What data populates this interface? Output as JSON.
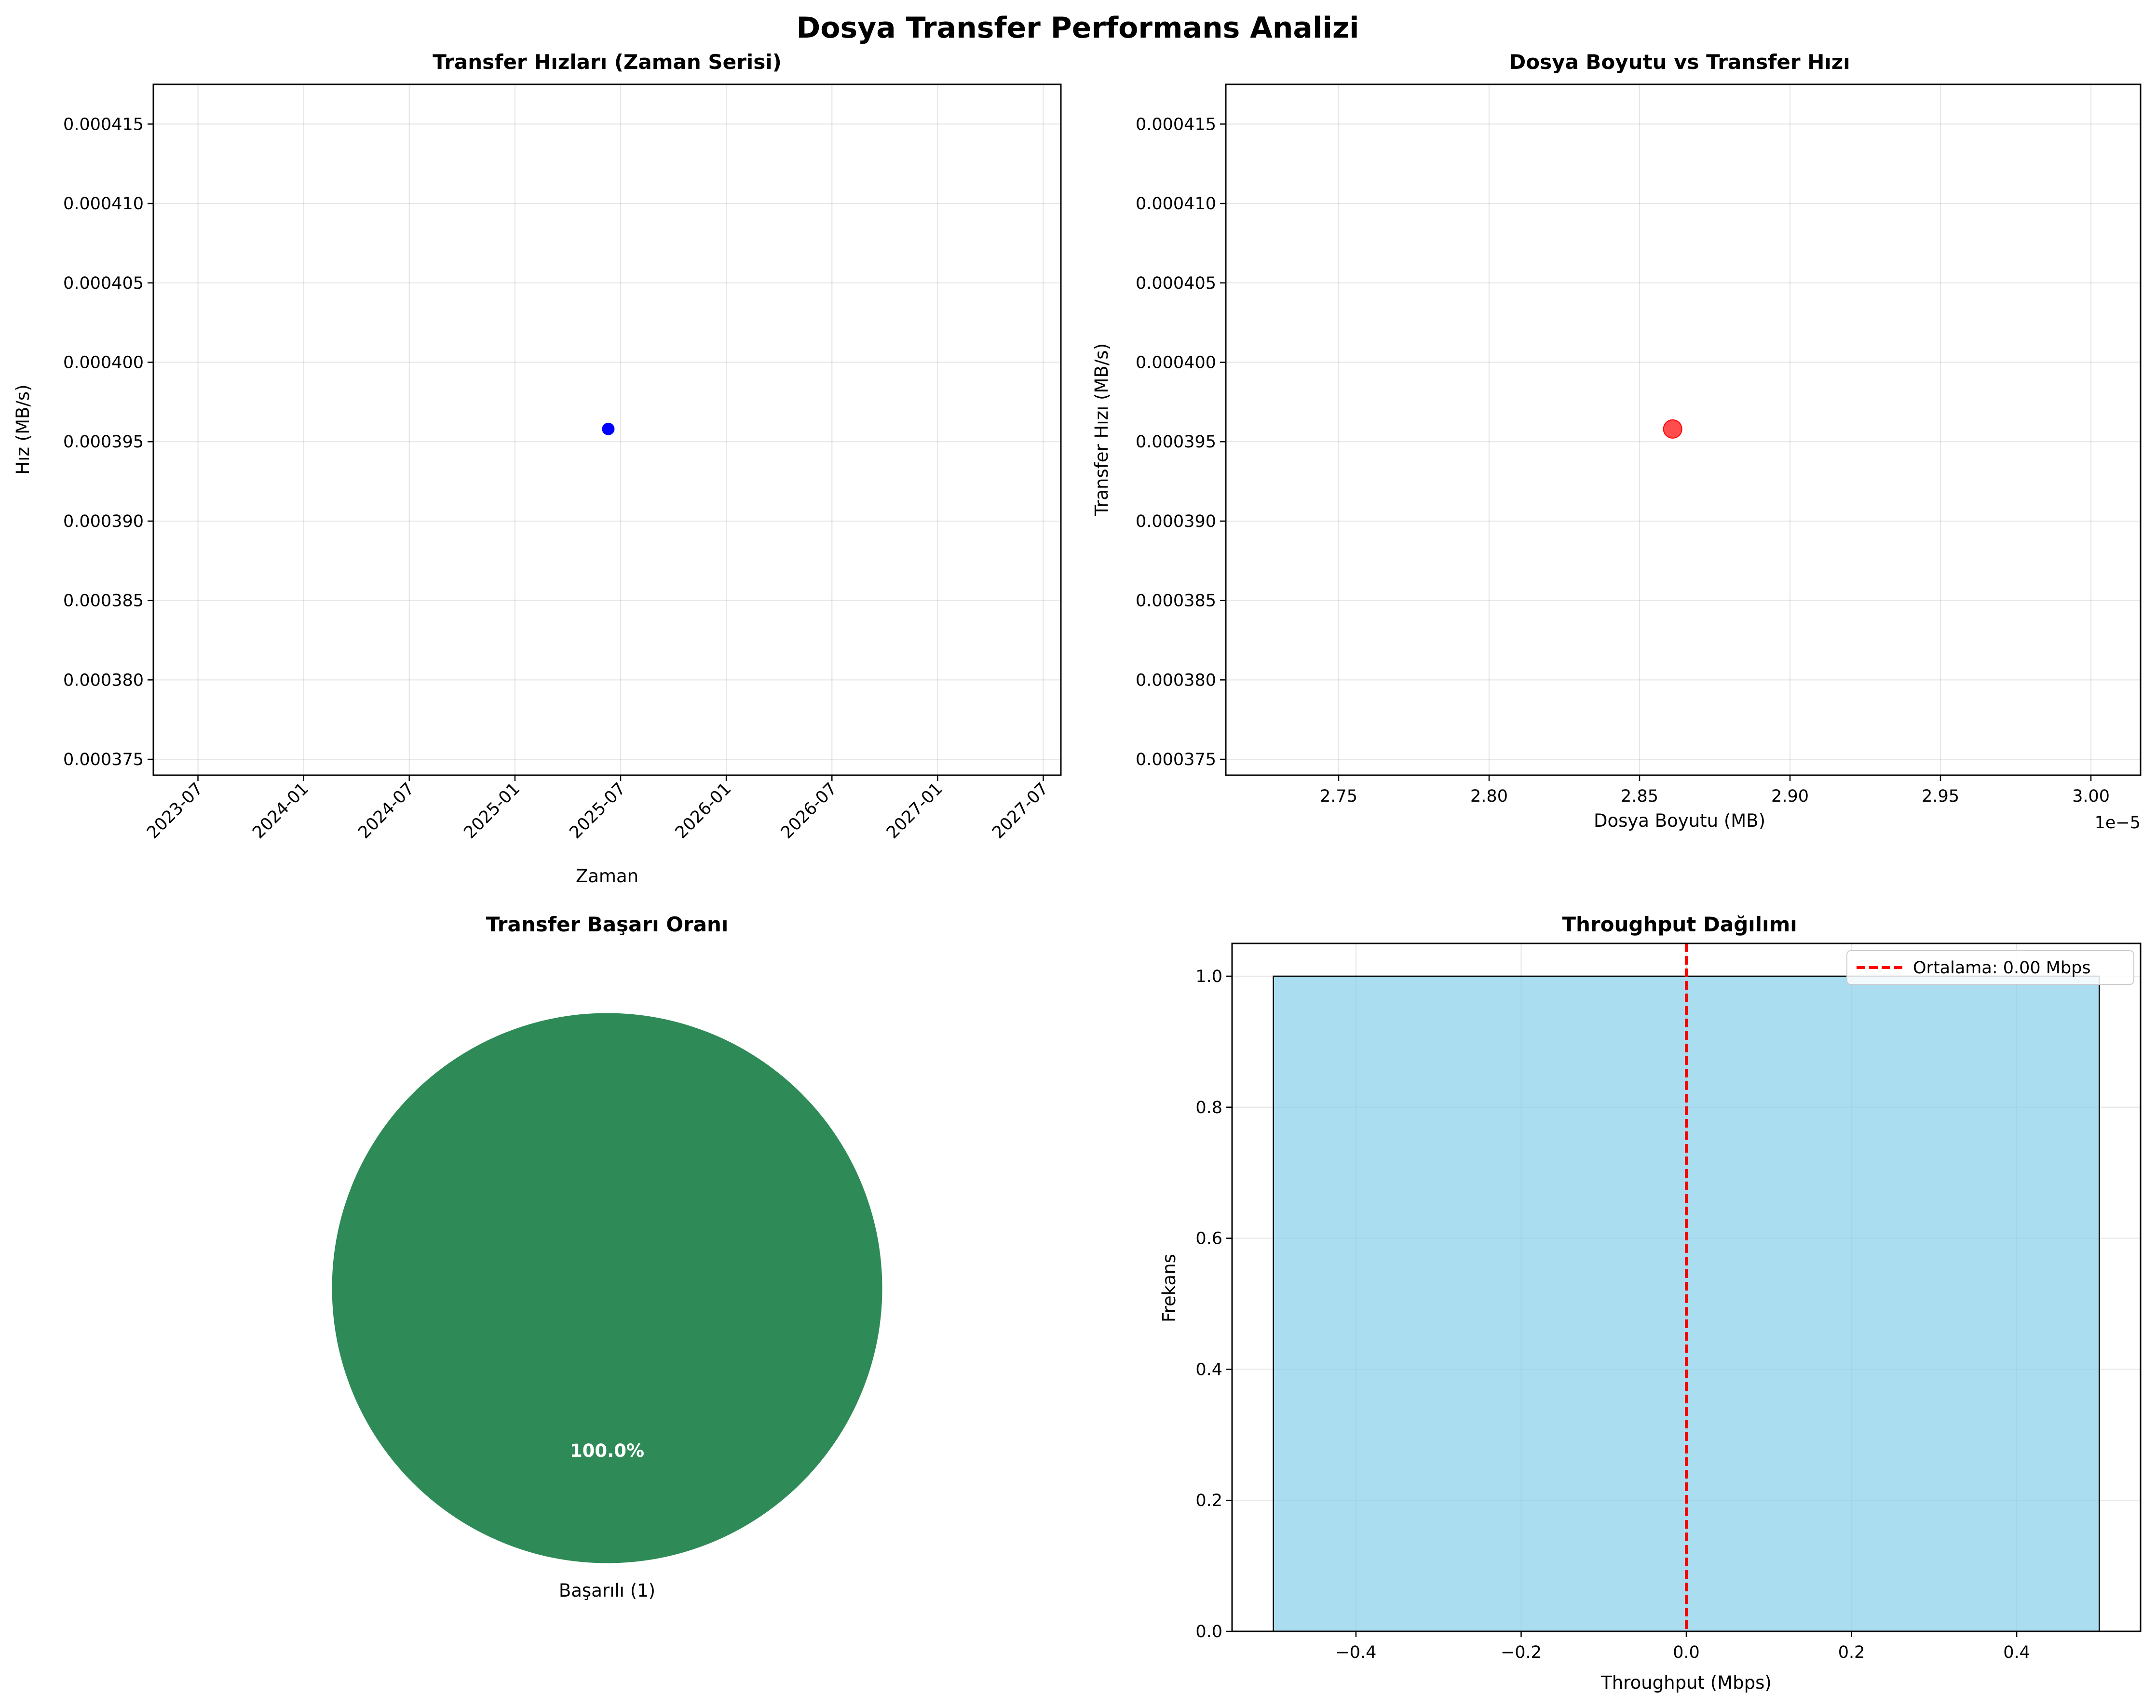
{
  "chart_data": [
    {
      "type": "line",
      "title": "Transfer Hızları (Zaman Serisi)",
      "xlabel": "Zaman",
      "ylabel": "Hız (MB/s)",
      "x_ticks": [
        "2023-07",
        "2024-01",
        "2024-07",
        "2025-01",
        "2025-07",
        "2026-01",
        "2026-07",
        "2027-01",
        "2027-07"
      ],
      "y_ticks": [
        "0.000375",
        "0.000380",
        "0.000385",
        "0.000390",
        "0.000395",
        "0.000400",
        "0.000405",
        "0.000410",
        "0.000415"
      ],
      "xlim": [
        "2023-04-15",
        "2027-08-01"
      ],
      "ylim": [
        0.000374,
        0.0004175
      ],
      "points": [
        {
          "x": "2025-06-10",
          "y": 0.0003958
        }
      ],
      "marker_color": "#0000ff",
      "grid": true
    },
    {
      "type": "scatter",
      "title": "Dosya Boyutu vs Transfer Hızı",
      "xlabel": "Dosya Boyutu (MB)",
      "ylabel": "Transfer Hızı (MB/s)",
      "x_offset_label": "1e−5",
      "x_ticks": [
        "2.75",
        "2.80",
        "2.85",
        "2.90",
        "2.95",
        "3.00"
      ],
      "y_ticks": [
        "0.000375",
        "0.000380",
        "0.000385",
        "0.000390",
        "0.000395",
        "0.000400",
        "0.000405",
        "0.000410",
        "0.000415"
      ],
      "xlim": [
        2.7125,
        3.0165
      ],
      "ylim": [
        0.000374,
        0.0004175
      ],
      "points": [
        {
          "x": 2.861,
          "y": 0.0003958
        }
      ],
      "marker_color": "#ff0000",
      "grid": true
    },
    {
      "type": "pie",
      "title": "Transfer Başarı Oranı",
      "slices": [
        {
          "label": "Başarılı (1)",
          "value": 1,
          "pct_label": "100.0%",
          "color": "#2e8b57"
        }
      ]
    },
    {
      "type": "bar",
      "title": "Throughput Dağılımı",
      "xlabel": "Throughput (Mbps)",
      "ylabel": "Frekans",
      "x_ticks": [
        "−0.4",
        "−0.2",
        "0.0",
        "0.2",
        "0.4"
      ],
      "y_ticks": [
        "0.0",
        "0.2",
        "0.4",
        "0.6",
        "0.8",
        "1.0"
      ],
      "xlim": [
        -0.55,
        0.55
      ],
      "ylim": [
        0,
        1.05
      ],
      "bins": [
        {
          "from": -0.5,
          "to": 0.5,
          "count": 1
        }
      ],
      "bar_color": "#87ceeb",
      "mean": {
        "value": 0.0,
        "color": "#ff0000"
      },
      "legend": {
        "label": "Ortalama: 0.00 Mbps",
        "placement": "top-right"
      },
      "grid": true
    }
  ],
  "figure": {
    "suptitle": "Dosya Transfer Performans Analizi"
  }
}
